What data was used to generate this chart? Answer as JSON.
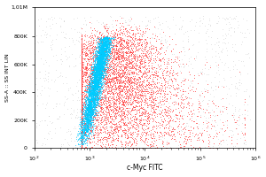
{
  "title": "",
  "xlabel": "c-Myc FITC",
  "ylabel": "SS-A :: SS INT LIN",
  "xlim_log": [
    100,
    1000000
  ],
  "ylim": [
    0,
    1014000
  ],
  "ytick_vals": [
    0,
    200000,
    400000,
    600000,
    800000,
    1014000
  ],
  "ytick_labels": [
    "0",
    "200K",
    "400K",
    "600K",
    "800K",
    "1,01M"
  ],
  "blue_color": "#00CCFF",
  "red_color": "#FF3333",
  "gray_color": "#BBBBBB",
  "bg_color": "#FFFFFF",
  "n_blue": 5000,
  "n_red": 7000,
  "n_gray": 1200,
  "seed": 42
}
